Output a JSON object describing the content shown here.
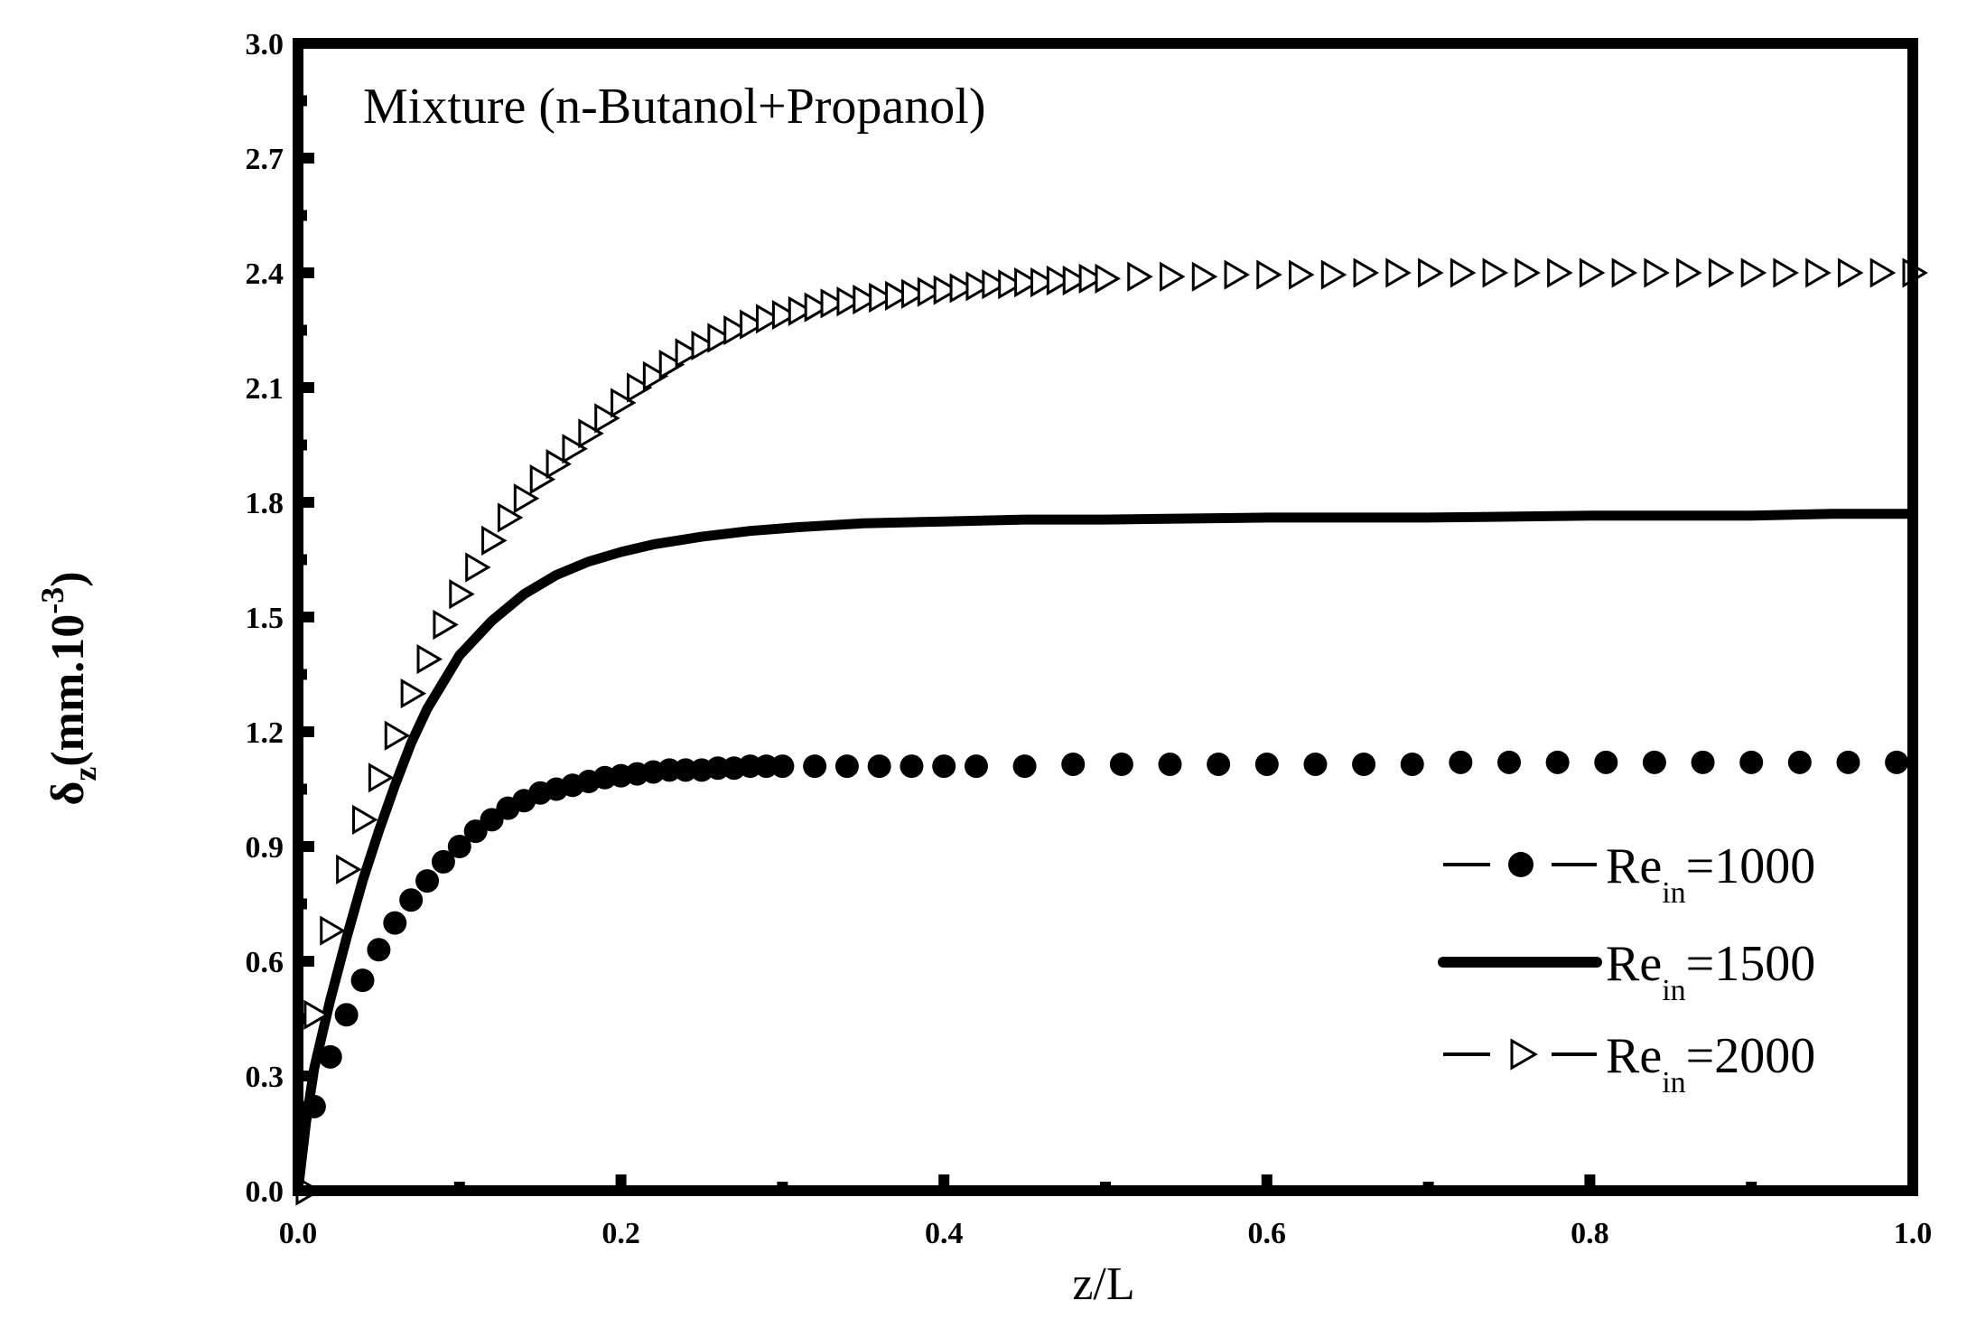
{
  "chart_data": {
    "type": "line",
    "title": "",
    "annotation": "Mixture (n-Butanol+Propanol)",
    "xlabel": "z/L",
    "ylabel": {
      "main": "δ",
      "subscript": "z",
      "rest": "(mm.10",
      "superscript": "-3",
      "close": ")"
    },
    "xlim": [
      0.0,
      1.0
    ],
    "ylim": [
      0.0,
      3.0
    ],
    "x_ticks": [
      "0.0",
      "0.2",
      "0.4",
      "0.6",
      "0.8",
      "1.0"
    ],
    "y_ticks": [
      "0.0",
      "0.3",
      "0.6",
      "0.9",
      "1.2",
      "1.5",
      "1.8",
      "2.1",
      "2.4",
      "2.7",
      "3.0"
    ],
    "grid": false,
    "legend_position": "bottom-right",
    "series": [
      {
        "name_main": "Re",
        "name_sub": "in",
        "name_rest": "=1000",
        "style": "filled-circles",
        "color": "#000000",
        "x": [
          0.01,
          0.02,
          0.03,
          0.04,
          0.05,
          0.06,
          0.07,
          0.08,
          0.09,
          0.1,
          0.11,
          0.12,
          0.13,
          0.14,
          0.15,
          0.16,
          0.17,
          0.18,
          0.19,
          0.2,
          0.21,
          0.22,
          0.23,
          0.24,
          0.25,
          0.26,
          0.27,
          0.28,
          0.29,
          0.3,
          0.32,
          0.34,
          0.36,
          0.38,
          0.4,
          0.42,
          0.45,
          0.48,
          0.51,
          0.54,
          0.57,
          0.6,
          0.63,
          0.66,
          0.69,
          0.72,
          0.75,
          0.78,
          0.81,
          0.84,
          0.87,
          0.9,
          0.93,
          0.96,
          0.99
        ],
        "y": [
          0.22,
          0.35,
          0.46,
          0.55,
          0.63,
          0.7,
          0.76,
          0.81,
          0.86,
          0.9,
          0.94,
          0.97,
          1.0,
          1.02,
          1.04,
          1.05,
          1.06,
          1.07,
          1.08,
          1.085,
          1.09,
          1.095,
          1.1,
          1.1,
          1.1,
          1.105,
          1.105,
          1.11,
          1.11,
          1.11,
          1.11,
          1.11,
          1.11,
          1.11,
          1.11,
          1.11,
          1.11,
          1.115,
          1.115,
          1.115,
          1.115,
          1.115,
          1.115,
          1.115,
          1.115,
          1.12,
          1.12,
          1.12,
          1.12,
          1.12,
          1.12,
          1.12,
          1.12,
          1.12,
          1.12
        ]
      },
      {
        "name_main": "Re",
        "name_sub": "in",
        "name_rest": "=1500",
        "style": "thick-line",
        "color": "#000000",
        "x": [
          0.0,
          0.005,
          0.01,
          0.02,
          0.03,
          0.04,
          0.05,
          0.06,
          0.07,
          0.08,
          0.09,
          0.1,
          0.12,
          0.14,
          0.16,
          0.18,
          0.2,
          0.22,
          0.25,
          0.28,
          0.31,
          0.35,
          0.4,
          0.45,
          0.5,
          0.6,
          0.7,
          0.8,
          0.9,
          0.95,
          1.0
        ],
        "y": [
          0.0,
          0.18,
          0.32,
          0.5,
          0.66,
          0.81,
          0.94,
          1.06,
          1.17,
          1.26,
          1.33,
          1.4,
          1.49,
          1.56,
          1.61,
          1.645,
          1.67,
          1.69,
          1.71,
          1.725,
          1.735,
          1.745,
          1.75,
          1.755,
          1.755,
          1.76,
          1.76,
          1.765,
          1.765,
          1.77,
          1.77
        ]
      },
      {
        "name_main": "Re",
        "name_sub": "in",
        "name_rest": "=2000",
        "style": "open-triangles",
        "color": "#000000",
        "x": [
          0.005,
          0.01,
          0.02,
          0.03,
          0.04,
          0.05,
          0.06,
          0.07,
          0.08,
          0.09,
          0.1,
          0.11,
          0.12,
          0.13,
          0.14,
          0.15,
          0.16,
          0.17,
          0.18,
          0.19,
          0.2,
          0.21,
          0.22,
          0.23,
          0.24,
          0.25,
          0.26,
          0.27,
          0.28,
          0.29,
          0.3,
          0.31,
          0.32,
          0.33,
          0.34,
          0.35,
          0.36,
          0.37,
          0.38,
          0.39,
          0.4,
          0.41,
          0.42,
          0.43,
          0.44,
          0.45,
          0.46,
          0.47,
          0.48,
          0.49,
          0.5,
          0.52,
          0.54,
          0.56,
          0.58,
          0.6,
          0.62,
          0.64,
          0.66,
          0.68,
          0.7,
          0.72,
          0.74,
          0.76,
          0.78,
          0.8,
          0.82,
          0.84,
          0.86,
          0.88,
          0.9,
          0.92,
          0.94,
          0.96,
          0.98,
          1.0
        ],
        "y": [
          0.0,
          0.46,
          0.68,
          0.84,
          0.97,
          1.08,
          1.19,
          1.3,
          1.39,
          1.48,
          1.56,
          1.63,
          1.7,
          1.76,
          1.81,
          1.86,
          1.9,
          1.94,
          1.98,
          2.02,
          2.06,
          2.1,
          2.13,
          2.16,
          2.19,
          2.21,
          2.23,
          2.25,
          2.265,
          2.28,
          2.29,
          2.3,
          2.31,
          2.32,
          2.325,
          2.33,
          2.335,
          2.34,
          2.345,
          2.35,
          2.355,
          2.36,
          2.365,
          2.37,
          2.37,
          2.375,
          2.375,
          2.38,
          2.38,
          2.385,
          2.385,
          2.39,
          2.39,
          2.39,
          2.395,
          2.395,
          2.395,
          2.395,
          2.4,
          2.4,
          2.4,
          2.4,
          2.4,
          2.4,
          2.4,
          2.4,
          2.4,
          2.4,
          2.4,
          2.4,
          2.4,
          2.4,
          2.4,
          2.4,
          2.4,
          2.4
        ]
      }
    ]
  }
}
